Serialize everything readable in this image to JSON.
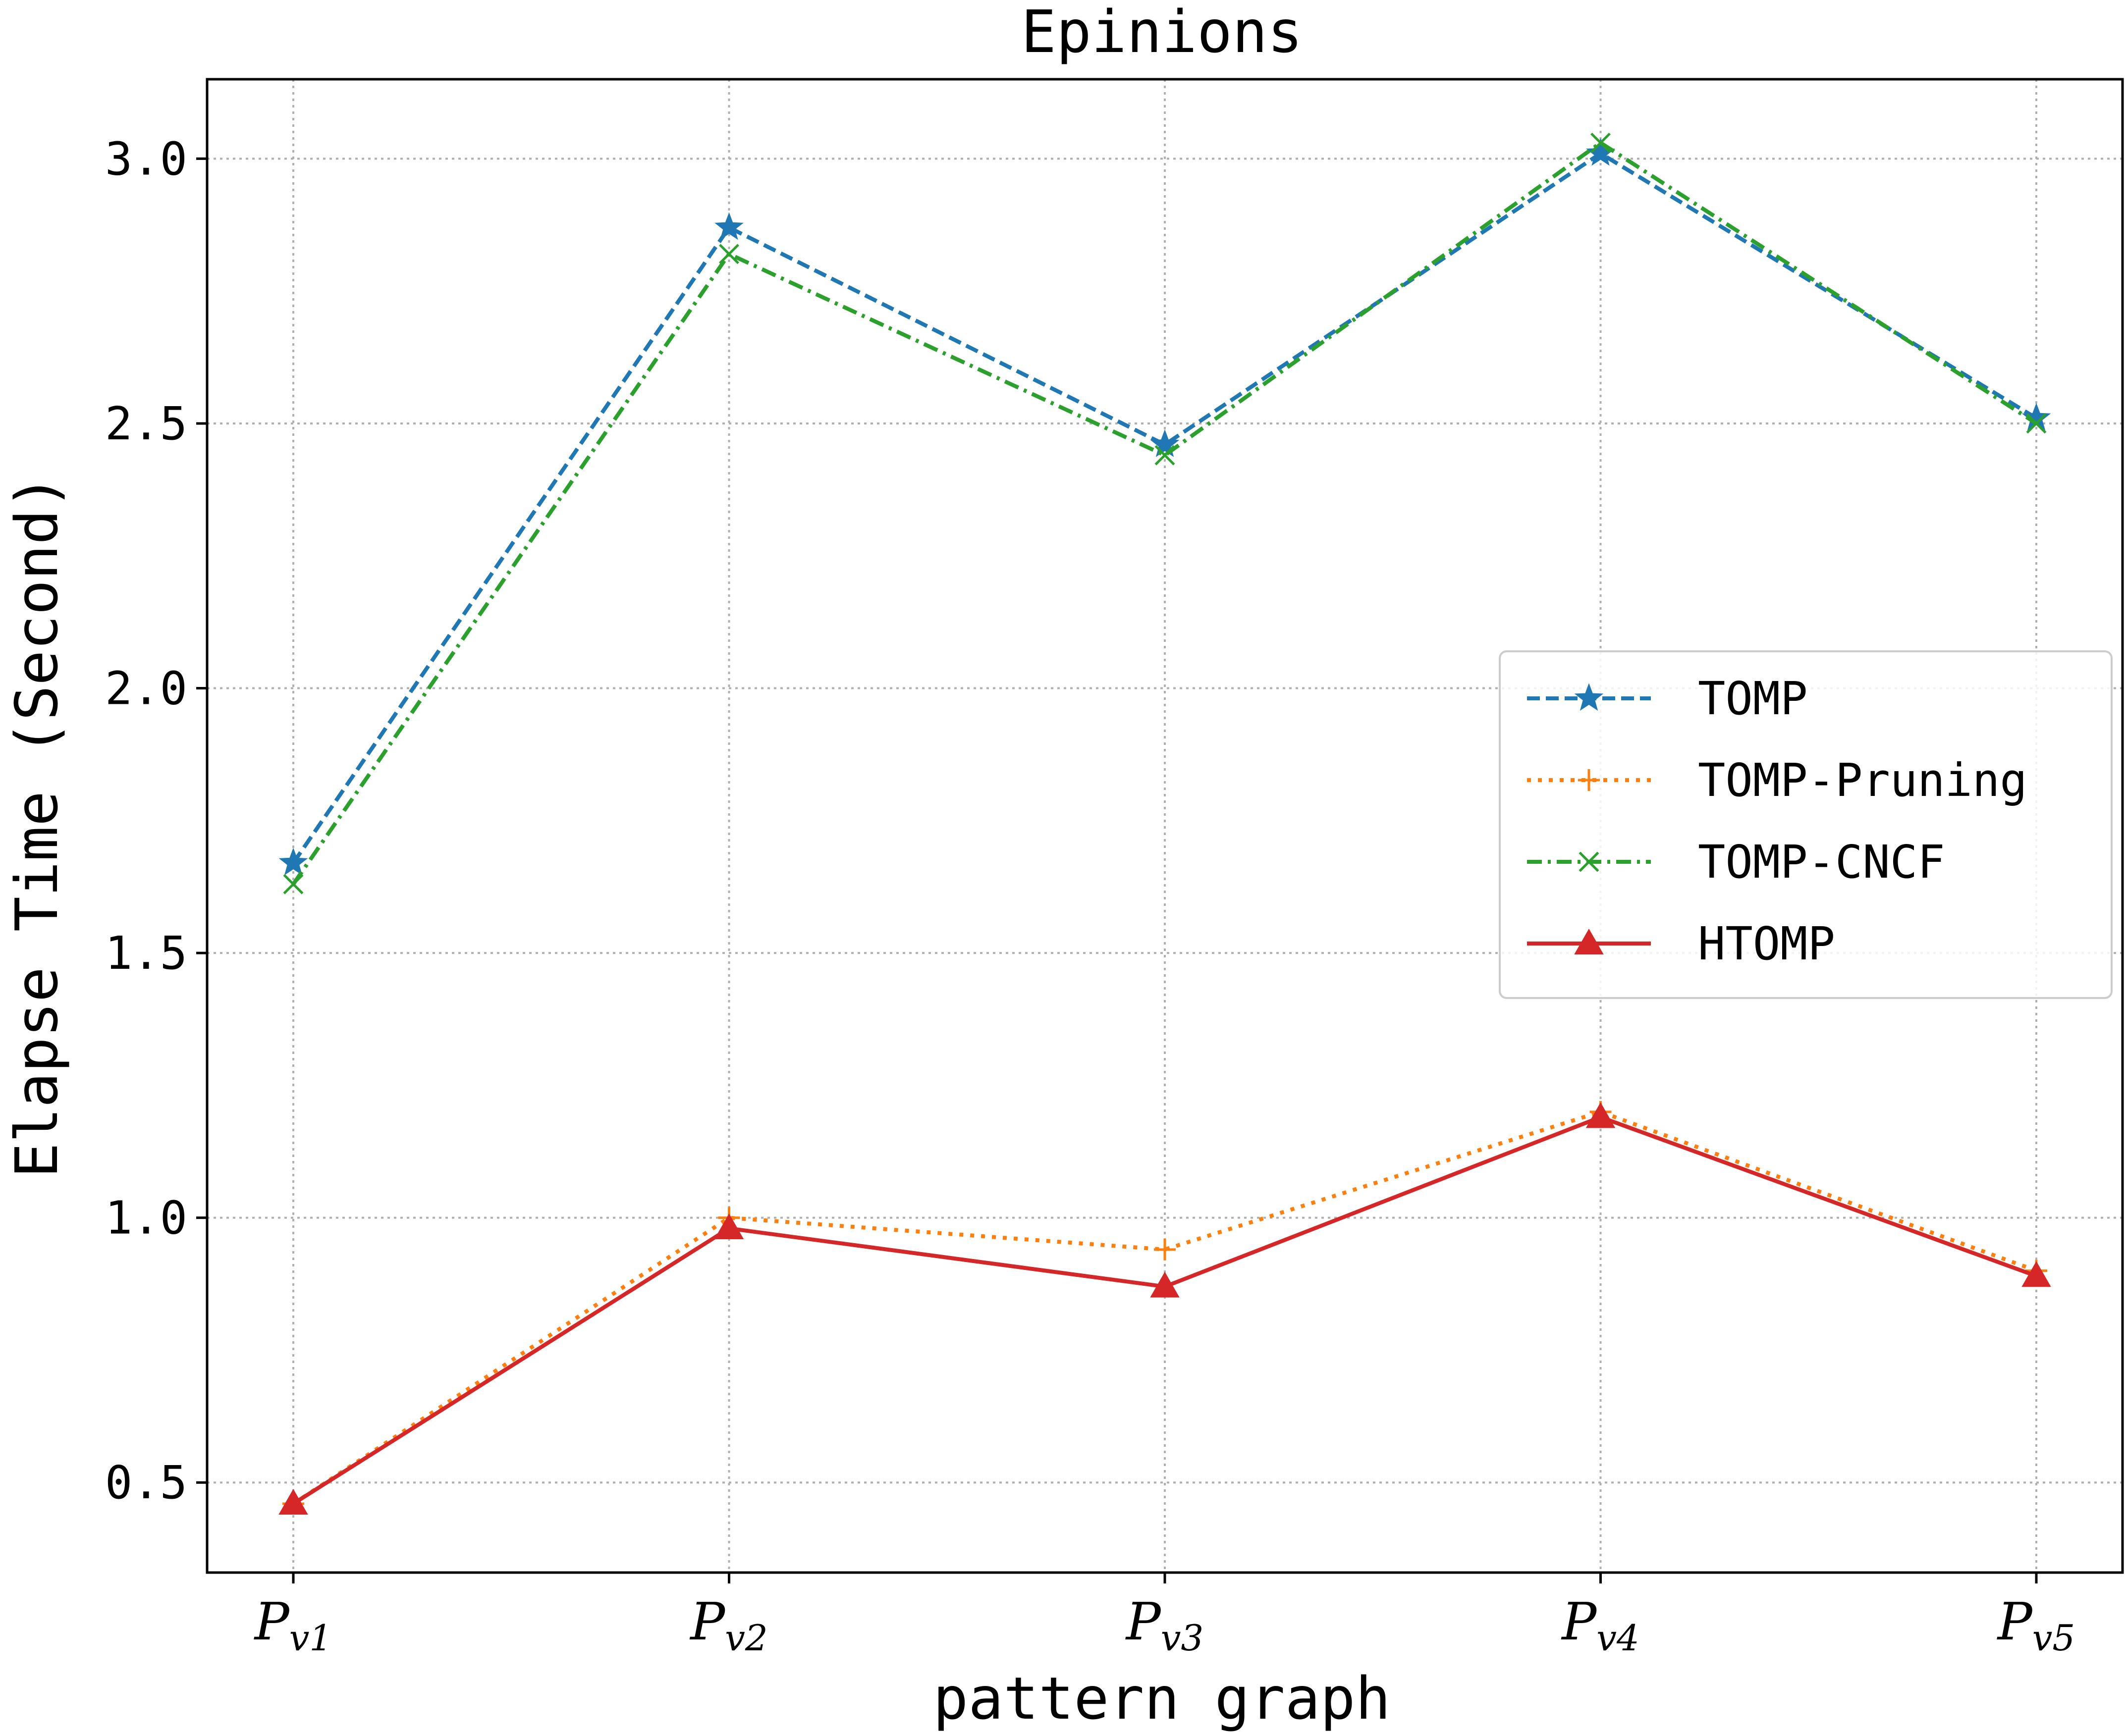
{
  "chart_data": {
    "type": "line",
    "title": "Epinions",
    "xlabel": "pattern graph",
    "ylabel": "Elapse Time (Second)",
    "categories": [
      {
        "main": "P",
        "sub": "v1"
      },
      {
        "main": "P",
        "sub": "v2"
      },
      {
        "main": "P",
        "sub": "v3"
      },
      {
        "main": "P",
        "sub": "v4"
      },
      {
        "main": "P",
        "sub": "v5"
      }
    ],
    "yticks": [
      "0.5",
      "1.0",
      "1.5",
      "2.0",
      "2.5",
      "3.0"
    ],
    "ylim": [
      0.33,
      3.15
    ],
    "grid": true,
    "legend_position": "center-right",
    "series": [
      {
        "name": "TOMP",
        "color": "#1f77b4",
        "line": "dashed",
        "marker": "star",
        "values": [
          1.67,
          2.87,
          2.46,
          3.01,
          2.51
        ]
      },
      {
        "name": "TOMP-Pruning",
        "color": "#ff7f0e",
        "line": "dotted",
        "marker": "plus",
        "values": [
          0.46,
          1.0,
          0.94,
          1.2,
          0.9
        ]
      },
      {
        "name": "TOMP-CNCF",
        "color": "#2ca02c",
        "line": "dashdot",
        "marker": "x",
        "values": [
          1.63,
          2.82,
          2.44,
          3.03,
          2.5
        ]
      },
      {
        "name": "HTOMP",
        "color": "#d62728",
        "line": "solid",
        "marker": "triangle",
        "values": [
          0.46,
          0.98,
          0.87,
          1.19,
          0.89
        ]
      }
    ]
  }
}
